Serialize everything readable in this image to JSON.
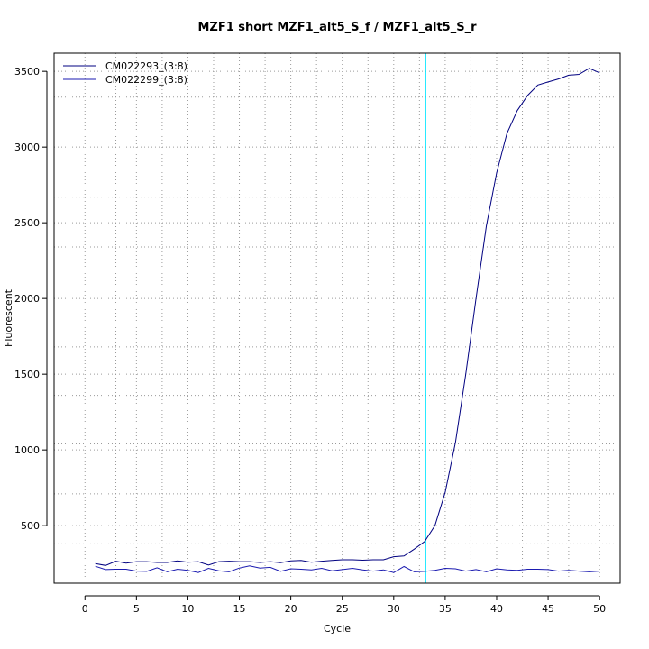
{
  "chart_data": {
    "type": "line",
    "title": "MZF1 short MZF1_alt5_S_f / MZF1_alt5_S_r",
    "xlabel": "Cycle",
    "ylabel": "Fluorescent",
    "xlim": [
      -3,
      52
    ],
    "ylim": [
      120,
      3620
    ],
    "xticks": [
      0,
      5,
      10,
      15,
      20,
      25,
      30,
      35,
      40,
      45,
      50
    ],
    "yticks": [
      500,
      1000,
      1500,
      2000,
      2500,
      3000,
      3500
    ],
    "grid": "dotted",
    "x_minor_grid": [
      3,
      7.5,
      12.5,
      17.5,
      22.5,
      27.5,
      32.5,
      37.5,
      42.5,
      47
    ],
    "y_minor_grid": [
      380,
      710,
      1040,
      1360,
      1680,
      2010,
      2340,
      2670,
      3330
    ],
    "threshold_cycle": 33.1,
    "threshold_color": "#00e5ff",
    "legend_position": "top-left",
    "series": [
      {
        "name": "CM022293_(3:8)",
        "color": "#000080",
        "x": [
          1,
          2,
          3,
          4,
          5,
          6,
          7,
          8,
          9,
          10,
          11,
          12,
          13,
          14,
          15,
          16,
          17,
          18,
          19,
          20,
          21,
          22,
          23,
          24,
          25,
          26,
          27,
          28,
          29,
          30,
          31,
          32,
          33,
          34,
          35,
          36,
          37,
          38,
          39,
          40,
          41,
          42,
          43,
          44,
          45,
          46,
          47,
          48,
          49,
          50
        ],
        "values": [
          250,
          237,
          265,
          252,
          262,
          262,
          257,
          257,
          267,
          258,
          262,
          240,
          262,
          265,
          262,
          262,
          257,
          262,
          255,
          267,
          270,
          258,
          265,
          270,
          275,
          275,
          272,
          275,
          275,
          295,
          300,
          345,
          395,
          500,
          720,
          1050,
          1500,
          2000,
          2480,
          2830,
          3090,
          3240,
          3340,
          3410,
          3430,
          3450,
          3475,
          3480,
          3520,
          3490
        ]
      },
      {
        "name": "CM022299_(3:8)",
        "color": "#1a1ab0",
        "x": [
          1,
          2,
          3,
          4,
          5,
          6,
          7,
          8,
          9,
          10,
          11,
          12,
          13,
          14,
          15,
          16,
          17,
          18,
          19,
          20,
          21,
          22,
          23,
          24,
          25,
          26,
          27,
          28,
          29,
          30,
          31,
          32,
          33,
          34,
          35,
          36,
          37,
          38,
          39,
          40,
          41,
          42,
          43,
          44,
          45,
          46,
          47,
          48,
          49,
          50
        ],
        "values": [
          232,
          210,
          212,
          212,
          200,
          198,
          222,
          195,
          212,
          205,
          190,
          218,
          202,
          195,
          220,
          235,
          220,
          225,
          198,
          215,
          212,
          208,
          218,
          202,
          210,
          218,
          208,
          200,
          208,
          190,
          230,
          195,
          198,
          205,
          218,
          215,
          200,
          210,
          195,
          215,
          208,
          205,
          212,
          212,
          210,
          200,
          205,
          200,
          195,
          200
        ]
      }
    ]
  }
}
